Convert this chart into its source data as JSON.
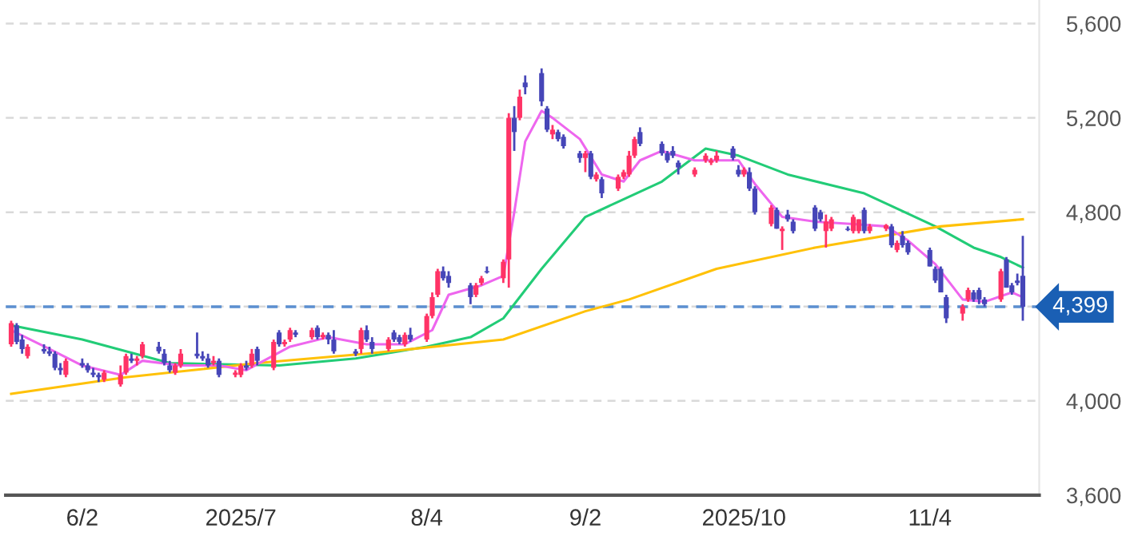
{
  "chart_data": {
    "type": "candlestick",
    "x": [
      "2025-05-20",
      "2025-05-21",
      "2025-05-22",
      "2025-05-23",
      "2025-05-26",
      "2025-05-27",
      "2025-05-28",
      "2025-05-29",
      "2025-05-30",
      "2025-06-02",
      "2025-06-03",
      "2025-06-04",
      "2025-06-05",
      "2025-06-06",
      "2025-06-09",
      "2025-06-10",
      "2025-06-11",
      "2025-06-12",
      "2025-06-13",
      "2025-06-16",
      "2025-06-17",
      "2025-06-18",
      "2025-06-19",
      "2025-06-20",
      "2025-06-23",
      "2025-06-24",
      "2025-06-25",
      "2025-06-26",
      "2025-06-27",
      "2025-06-30",
      "2025-07-01",
      "2025-07-02",
      "2025-07-03",
      "2025-07-04",
      "2025-07-07",
      "2025-07-08",
      "2025-07-09",
      "2025-07-10",
      "2025-07-11",
      "2025-07-14",
      "2025-07-15",
      "2025-07-16",
      "2025-07-17",
      "2025-07-18",
      "2025-07-22",
      "2025-07-23",
      "2025-07-24",
      "2025-07-25",
      "2025-07-28",
      "2025-07-29",
      "2025-07-30",
      "2025-07-31",
      "2025-08-01",
      "2025-08-04",
      "2025-08-05",
      "2025-08-06",
      "2025-08-07",
      "2025-08-08",
      "2025-08-12",
      "2025-08-13",
      "2025-08-14",
      "2025-08-15",
      "2025-08-18",
      "2025-08-19",
      "2025-08-20",
      "2025-08-21",
      "2025-08-22",
      "2025-08-25",
      "2025-08-26",
      "2025-08-27",
      "2025-08-28",
      "2025-08-29",
      "2025-09-01",
      "2025-09-02",
      "2025-09-03",
      "2025-09-04",
      "2025-09-05",
      "2025-09-08",
      "2025-09-09",
      "2025-09-10",
      "2025-09-11",
      "2025-09-12",
      "2025-09-16",
      "2025-09-17",
      "2025-09-18",
      "2025-09-19",
      "2025-09-22",
      "2025-09-24",
      "2025-09-25",
      "2025-09-26",
      "2025-09-29",
      "2025-09-30",
      "2025-10-01",
      "2025-10-02",
      "2025-10-03",
      "2025-10-06",
      "2025-10-07",
      "2025-10-08",
      "2025-10-09",
      "2025-10-10",
      "2025-10-14",
      "2025-10-15",
      "2025-10-16",
      "2025-10-17",
      "2025-10-20",
      "2025-10-21",
      "2025-10-22",
      "2025-10-23",
      "2025-10-24",
      "2025-10-27",
      "2025-10-28",
      "2025-10-29",
      "2025-10-30",
      "2025-10-31",
      "2025-11-04",
      "2025-11-05",
      "2025-11-06",
      "2025-11-07",
      "2025-11-10",
      "2025-11-11",
      "2025-11-12",
      "2025-11-13",
      "2025-11-14",
      "2025-11-17",
      "2025-11-18",
      "2025-11-19",
      "2025-11-20",
      "2025-11-21"
    ],
    "ohlc": [
      [
        4240,
        4340,
        4230,
        4330
      ],
      [
        4320,
        4330,
        4240,
        4250
      ],
      [
        4260,
        4280,
        4200,
        4220
      ],
      [
        4190,
        4240,
        4180,
        4230
      ],
      [
        4220,
        4240,
        4200,
        4210
      ],
      [
        4210,
        4230,
        4190,
        4200
      ],
      [
        4200,
        4210,
        4130,
        4140
      ],
      [
        4140,
        4160,
        4110,
        4130
      ],
      [
        4110,
        4180,
        4100,
        4170
      ],
      [
        4160,
        4180,
        4140,
        4150
      ],
      [
        4150,
        4160,
        4120,
        4130
      ],
      [
        4120,
        4140,
        4100,
        4110
      ],
      [
        4110,
        4120,
        4080,
        4100
      ],
      [
        4090,
        4130,
        4080,
        4120
      ],
      [
        4070,
        4150,
        4060,
        4110
      ],
      [
        4120,
        4200,
        4110,
        4190
      ],
      [
        4180,
        4200,
        4160,
        4170
      ],
      [
        4170,
        4190,
        4150,
        4180
      ],
      [
        4190,
        4250,
        4180,
        4240
      ],
      [
        4230,
        4250,
        4200,
        4210
      ],
      [
        4200,
        4220,
        4150,
        4160
      ],
      [
        4150,
        4170,
        4120,
        4130
      ],
      [
        4120,
        4160,
        4110,
        4150
      ],
      [
        4150,
        4220,
        4140,
        4200
      ],
      [
        4200,
        4290,
        4180,
        4190
      ],
      [
        4190,
        4210,
        4170,
        4180
      ],
      [
        4180,
        4200,
        4140,
        4150
      ],
      [
        4160,
        4190,
        4150,
        4170
      ],
      [
        4170,
        4180,
        4100,
        4110
      ],
      [
        4110,
        4130,
        4100,
        4120
      ],
      [
        4110,
        4160,
        4100,
        4150
      ],
      [
        4150,
        4170,
        4130,
        4140
      ],
      [
        4150,
        4220,
        4140,
        4200
      ],
      [
        4220,
        4230,
        4150,
        4170
      ],
      [
        4140,
        4260,
        4130,
        4250
      ],
      [
        4290,
        4300,
        4230,
        4240
      ],
      [
        4240,
        4260,
        4230,
        4250
      ],
      [
        4260,
        4310,
        4250,
        4300
      ],
      [
        4290,
        4300,
        4270,
        4280
      ],
      [
        4270,
        4310,
        4260,
        4300
      ],
      [
        4310,
        4320,
        4260,
        4270
      ],
      [
        4270,
        4290,
        4260,
        4280
      ],
      [
        4280,
        4290,
        4240,
        4260
      ],
      [
        4260,
        4300,
        4200,
        4210
      ],
      [
        4210,
        4220,
        4190,
        4200
      ],
      [
        4220,
        4310,
        4200,
        4300
      ],
      [
        4300,
        4320,
        4250,
        4260
      ],
      [
        4250,
        4270,
        4200,
        4220
      ],
      [
        4220,
        4270,
        4210,
        4260
      ],
      [
        4290,
        4300,
        4250,
        4260
      ],
      [
        4270,
        4280,
        4240,
        4250
      ],
      [
        4240,
        4290,
        4230,
        4280
      ],
      [
        4280,
        4310,
        4250,
        4260
      ],
      [
        4260,
        4370,
        4250,
        4360
      ],
      [
        4360,
        4460,
        4350,
        4440
      ],
      [
        4450,
        4560,
        4440,
        4550
      ],
      [
        4550,
        4570,
        4510,
        4520
      ],
      [
        4530,
        4550,
        4480,
        4500
      ],
      [
        4490,
        4500,
        4410,
        4440
      ],
      [
        4450,
        4500,
        4440,
        4490
      ],
      [
        4500,
        4530,
        4490,
        4520
      ],
      [
        4550,
        4570,
        4540,
        4545
      ],
      [
        4520,
        4600,
        4500,
        4590
      ],
      [
        4600,
        5220,
        4480,
        5200
      ],
      [
        5200,
        5250,
        5060,
        5140
      ],
      [
        5200,
        5320,
        5190,
        5290
      ],
      [
        5350,
        5380,
        5300,
        5330
      ],
      [
        5390,
        5410,
        5250,
        5270
      ],
      [
        5240,
        5250,
        5140,
        5150
      ],
      [
        5130,
        5170,
        5110,
        5150
      ],
      [
        5140,
        5150,
        5100,
        5110
      ],
      [
        5120,
        5130,
        5070,
        5080
      ],
      [
        5050,
        5060,
        5010,
        5030
      ],
      [
        5030,
        5060,
        4970,
        5050
      ],
      [
        5050,
        5060,
        4940,
        4950
      ],
      [
        4940,
        4970,
        4930,
        4960
      ],
      [
        4940,
        4950,
        4860,
        4880
      ],
      [
        4900,
        4960,
        4890,
        4950
      ],
      [
        4950,
        4980,
        4940,
        4970
      ],
      [
        4960,
        5060,
        4950,
        5040
      ],
      [
        5040,
        5120,
        5030,
        5110
      ],
      [
        5140,
        5160,
        5080,
        5090
      ],
      [
        5090,
        5100,
        5040,
        5050
      ],
      [
        5050,
        5060,
        5010,
        5020
      ],
      [
        5060,
        5080,
        5030,
        5040
      ],
      [
        5010,
        5020,
        4960,
        4990
      ],
      [
        4960,
        4990,
        4950,
        4980
      ],
      [
        5020,
        5050,
        5010,
        5040
      ],
      [
        5010,
        5030,
        5000,
        5020
      ],
      [
        5020,
        5060,
        5010,
        5040
      ],
      [
        5070,
        5080,
        5020,
        5030
      ],
      [
        4980,
        5000,
        4950,
        4960
      ],
      [
        4960,
        4990,
        4950,
        4980
      ],
      [
        4970,
        4990,
        4890,
        4900
      ],
      [
        4900,
        4910,
        4790,
        4800
      ],
      [
        4750,
        4830,
        4740,
        4820
      ],
      [
        4810,
        4820,
        4730,
        4730
      ],
      [
        4720,
        4740,
        4640,
        4730
      ],
      [
        4790,
        4810,
        4760,
        4770
      ],
      [
        4760,
        4770,
        4710,
        4720
      ],
      [
        4820,
        4830,
        4720,
        4730
      ],
      [
        4800,
        4810,
        4760,
        4770
      ],
      [
        4720,
        4790,
        4650,
        4760
      ],
      [
        4730,
        4780,
        4720,
        4770
      ],
      [
        4730,
        4740,
        4720,
        4725
      ],
      [
        4720,
        4790,
        4710,
        4780
      ],
      [
        4720,
        4770,
        4710,
        4770
      ],
      [
        4810,
        4820,
        4710,
        4720
      ],
      [
        4720,
        4750,
        4710,
        4740
      ],
      [
        4730,
        4750,
        4720,
        4745
      ],
      [
        4740,
        4750,
        4650,
        4660
      ],
      [
        4640,
        4680,
        4630,
        4670
      ],
      [
        4700,
        4720,
        4650,
        4660
      ],
      [
        4670,
        4680,
        4620,
        4630
      ],
      [
        4640,
        4650,
        4570,
        4570
      ],
      [
        4560,
        4570,
        4500,
        4510
      ],
      [
        4560,
        4570,
        4460,
        4460
      ],
      [
        4440,
        4450,
        4330,
        4350
      ],
      [
        4370,
        4410,
        4340,
        4400
      ],
      [
        4430,
        4480,
        4420,
        4470
      ],
      [
        4460,
        4470,
        4420,
        4430
      ],
      [
        4470,
        4480,
        4410,
        4430
      ],
      [
        4430,
        4440,
        4400,
        4410
      ],
      [
        4430,
        4560,
        4420,
        4550
      ],
      [
        4600,
        4610,
        4480,
        4480
      ],
      [
        4490,
        4500,
        4450,
        4460
      ],
      [
        4510,
        4540,
        4490,
        4500
      ],
      [
        4530,
        4700,
        4340,
        4399
      ]
    ],
    "colors": [
      "#ff3366",
      "#4646b8",
      "#4646b8",
      "#ff3366",
      "#4646b8",
      "#4646b8",
      "#4646b8",
      "#4646b8",
      "#ff3366",
      "#4646b8",
      "#4646b8",
      "#4646b8",
      "#4646b8",
      "#ff3366",
      "#ff3366",
      "#ff3366",
      "#4646b8",
      "#ff3366",
      "#ff3366",
      "#4646b8",
      "#4646b8",
      "#4646b8",
      "#ff3366",
      "#ff3366",
      "#4646b8",
      "#4646b8",
      "#4646b8",
      "#ff3366",
      "#4646b8",
      "#ff3366",
      "#ff3366",
      "#4646b8",
      "#ff3366",
      "#4646b8",
      "#ff3366",
      "#4646b8",
      "#ff3366",
      "#ff3366",
      "#4646b8",
      "#ff3366",
      "#4646b8",
      "#ff3366",
      "#4646b8",
      "#4646b8",
      "#4646b8",
      "#ff3366",
      "#4646b8",
      "#4646b8",
      "#ff3366",
      "#4646b8",
      "#4646b8",
      "#ff3366",
      "#4646b8",
      "#ff3366",
      "#ff3366",
      "#ff3366",
      "#4646b8",
      "#4646b8",
      "#4646b8",
      "#ff3366",
      "#ff3366",
      "#4646b8",
      "#ff3366",
      "#ff3366",
      "#4646b8",
      "#ff3366",
      "#4646b8",
      "#4646b8",
      "#4646b8",
      "#ff3366",
      "#4646b8",
      "#4646b8",
      "#4646b8",
      "#ff3366",
      "#4646b8",
      "#ff3366",
      "#4646b8",
      "#ff3366",
      "#ff3366",
      "#ff3366",
      "#ff3366",
      "#4646b8",
      "#4646b8",
      "#4646b8",
      "#4646b8",
      "#4646b8",
      "#ff3366",
      "#ff3366",
      "#ff3366",
      "#ff3366",
      "#4646b8",
      "#4646b8",
      "#ff3366",
      "#4646b8",
      "#4646b8",
      "#ff3366",
      "#4646b8",
      "#ff3366",
      "#4646b8",
      "#4646b8",
      "#4646b8",
      "#4646b8",
      "#ff3366",
      "#ff3366",
      "#4646b8",
      "#ff3366",
      "#ff3366",
      "#4646b8",
      "#ff3366",
      "#ff3366",
      "#4646b8",
      "#ff3366",
      "#4646b8",
      "#4646b8",
      "#4646b8",
      "#4646b8",
      "#4646b8",
      "#4646b8",
      "#ff3366",
      "#ff3366",
      "#4646b8",
      "#4646b8",
      "#4646b8",
      "#ff3366",
      "#4646b8",
      "#4646b8",
      "#4646b8",
      "#4646b8"
    ],
    "series": [
      {
        "type": "line",
        "color": "#22cc77",
        "x": [
          "2025-05-20",
          "2025-06-02",
          "2025-06-10",
          "2025-06-18",
          "2025-07-08",
          "2025-07-22",
          "2025-08-04",
          "2025-08-12",
          "2025-08-18",
          "2025-08-25",
          "2025-09-02",
          "2025-09-16",
          "2025-09-24",
          "2025-09-30",
          "2025-10-09",
          "2025-10-23",
          "2025-11-05",
          "2025-11-12",
          "2025-11-17",
          "2025-11-21"
        ],
        "values": [
          4320,
          4260,
          4210,
          4160,
          4150,
          4180,
          4230,
          4270,
          4350,
          4560,
          4780,
          4930,
          5070,
          5040,
          4960,
          4880,
          4740,
          4650,
          4610,
          4565
        ]
      },
      {
        "type": "line",
        "color": "#ffc107",
        "x": [
          "2025-05-20",
          "2025-06-10",
          "2025-07-04",
          "2025-07-24",
          "2025-08-18",
          "2025-09-02",
          "2025-09-10",
          "2025-09-26",
          "2025-10-14",
          "2025-11-06",
          "2025-11-21"
        ],
        "values": [
          4030,
          4100,
          4160,
          4200,
          4260,
          4380,
          4430,
          4560,
          4650,
          4740,
          4770
        ]
      },
      {
        "type": "line",
        "color": "#ee66ee",
        "x": [
          "2025-05-20",
          "2025-05-27",
          "2025-06-02",
          "2025-06-09",
          "2025-06-13",
          "2025-06-20",
          "2025-06-27",
          "2025-07-02",
          "2025-07-10",
          "2025-07-17",
          "2025-07-24",
          "2025-07-31",
          "2025-08-05",
          "2025-08-08",
          "2025-08-14",
          "2025-08-18",
          "2025-08-20",
          "2025-08-22",
          "2025-08-25",
          "2025-08-27",
          "2025-09-01",
          "2025-09-05",
          "2025-09-09",
          "2025-09-12",
          "2025-09-16",
          "2025-09-22",
          "2025-09-26",
          "2025-09-30",
          "2025-10-03",
          "2025-10-08",
          "2025-10-14",
          "2025-10-21",
          "2025-10-27",
          "2025-10-31",
          "2025-11-05",
          "2025-11-10",
          "2025-11-14",
          "2025-11-19",
          "2025-11-21"
        ],
        "values": [
          4300,
          4220,
          4150,
          4110,
          4170,
          4150,
          4150,
          4130,
          4230,
          4270,
          4240,
          4240,
          4300,
          4450,
          4490,
          4530,
          4800,
          5100,
          5230,
          5200,
          5110,
          4960,
          4930,
          5020,
          5060,
          5020,
          5020,
          5020,
          4920,
          4780,
          4760,
          4750,
          4740,
          4680,
          4580,
          4430,
          4420,
          4460,
          4440
        ]
      }
    ],
    "xlim": [
      "2025-05-19",
      "2025-11-24"
    ],
    "xticks": [
      {
        "value": "2025-06-02",
        "label": "6/2"
      },
      {
        "value": "2025-07-01",
        "label": "2025/7"
      },
      {
        "value": "2025-08-04",
        "label": "8/4"
      },
      {
        "value": "2025-09-02",
        "label": "9/2"
      },
      {
        "value": "2025-10-01",
        "label": "2025/10"
      },
      {
        "value": "2025-11-04",
        "label": "11/4"
      }
    ],
    "ylim": [
      3600,
      5700
    ],
    "yticks": [
      {
        "value": 3600,
        "label": "3,600"
      },
      {
        "value": 4000,
        "label": "4,000"
      },
      {
        "value": 4400,
        "label": null
      },
      {
        "value": 4800,
        "label": "4,800"
      },
      {
        "value": 5200,
        "label": "5,200"
      },
      {
        "value": 5600,
        "label": "5,600"
      }
    ],
    "ref_lines": [
      {
        "axis": "y",
        "value": 4399,
        "label": "4,399",
        "color": "#5b8fd0",
        "line_style": "dashed"
      }
    ],
    "grid": "y"
  }
}
